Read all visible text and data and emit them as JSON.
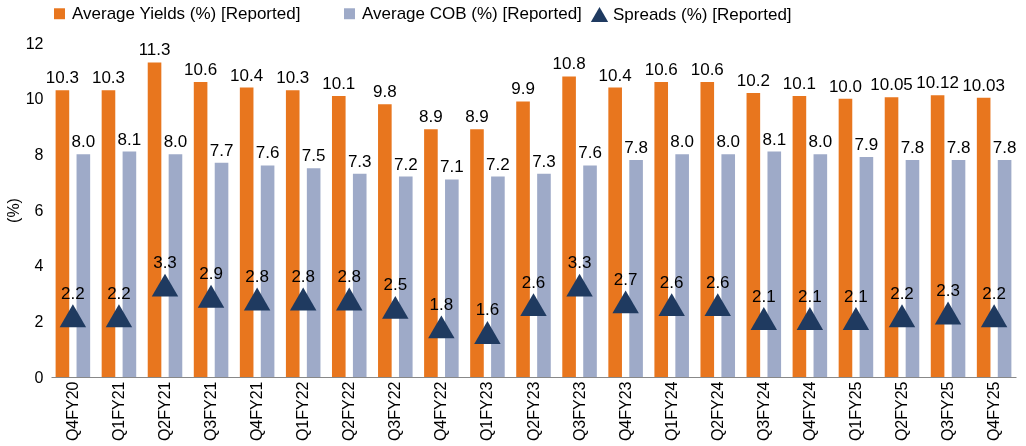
{
  "chart_data": {
    "type": "bar",
    "ylabel": "(%)",
    "categories": [
      "Q4FY20",
      "Q1FY21",
      "Q2FY21",
      "Q3FY21",
      "Q4FY21",
      "Q1FY22",
      "Q2FY22",
      "Q3FY22",
      "Q4FY22",
      "Q1FY23",
      "Q2FY23",
      "Q3FY23",
      "Q4FY23",
      "Q1FY24",
      "Q2FY24",
      "Q3FY24",
      "Q4FY24",
      "Q1FY25",
      "Q2FY25",
      "Q3FY25",
      "Q4FY25"
    ],
    "series": [
      {
        "name": "Average Yields (%) [Reported]",
        "color": "#e8761e",
        "values": [
          10.3,
          10.3,
          11.3,
          10.6,
          10.4,
          10.3,
          10.1,
          9.8,
          8.9,
          8.9,
          9.9,
          10.8,
          10.4,
          10.6,
          10.6,
          10.2,
          10.1,
          10.0,
          10.05,
          10.12,
          10.03
        ],
        "value_labels": [
          "10.3",
          "10.3",
          "11.3",
          "10.6",
          "10.4",
          "10.3",
          "10.1",
          "9.8",
          "8.9",
          "8.9",
          "9.9",
          "10.8",
          "10.4",
          "10.6",
          "10.6",
          "10.2",
          "10.1",
          "10.0",
          "10.05",
          "10.12",
          "10.03"
        ]
      },
      {
        "name": "Average COB (%) [Reported]",
        "color": "#9eaac8",
        "values": [
          8.0,
          8.1,
          8.0,
          7.7,
          7.6,
          7.5,
          7.3,
          7.2,
          7.1,
          7.2,
          7.3,
          7.6,
          7.8,
          8.0,
          8.0,
          8.1,
          8.0,
          7.9,
          7.8,
          7.8,
          7.8
        ],
        "value_labels": [
          "8.0",
          "8.1",
          "8.0",
          "7.7",
          "7.6",
          "7.5",
          "7.3",
          "7.2",
          "7.1",
          "7.2",
          "7.3",
          "7.6",
          "7.8",
          "8.0",
          "8.0",
          "8.1",
          "8.0",
          "7.9",
          "7.8",
          "7.8",
          "7.8"
        ]
      },
      {
        "name": "Spreads (%) [Reported]",
        "type": "scatter",
        "marker": "triangle",
        "color": "#1f3a60",
        "values": [
          2.2,
          2.2,
          3.3,
          2.9,
          2.8,
          2.8,
          2.8,
          2.5,
          1.8,
          1.6,
          2.6,
          3.3,
          2.7,
          2.6,
          2.6,
          2.1,
          2.1,
          2.1,
          2.2,
          2.3,
          2.2
        ],
        "value_labels": [
          "2.2",
          "2.2",
          "3.3",
          "2.9",
          "2.8",
          "2.8",
          "2.8",
          "2.5",
          "1.8",
          "1.6",
          "2.6",
          "3.3",
          "2.7",
          "2.6",
          "2.6",
          "2.1",
          "2.1",
          "2.1",
          "2.2",
          "2.3",
          "2.2"
        ]
      }
    ],
    "ylim": [
      0,
      12
    ],
    "yticks": [
      0,
      2,
      4,
      6,
      8,
      10,
      12
    ],
    "legend": "top"
  }
}
